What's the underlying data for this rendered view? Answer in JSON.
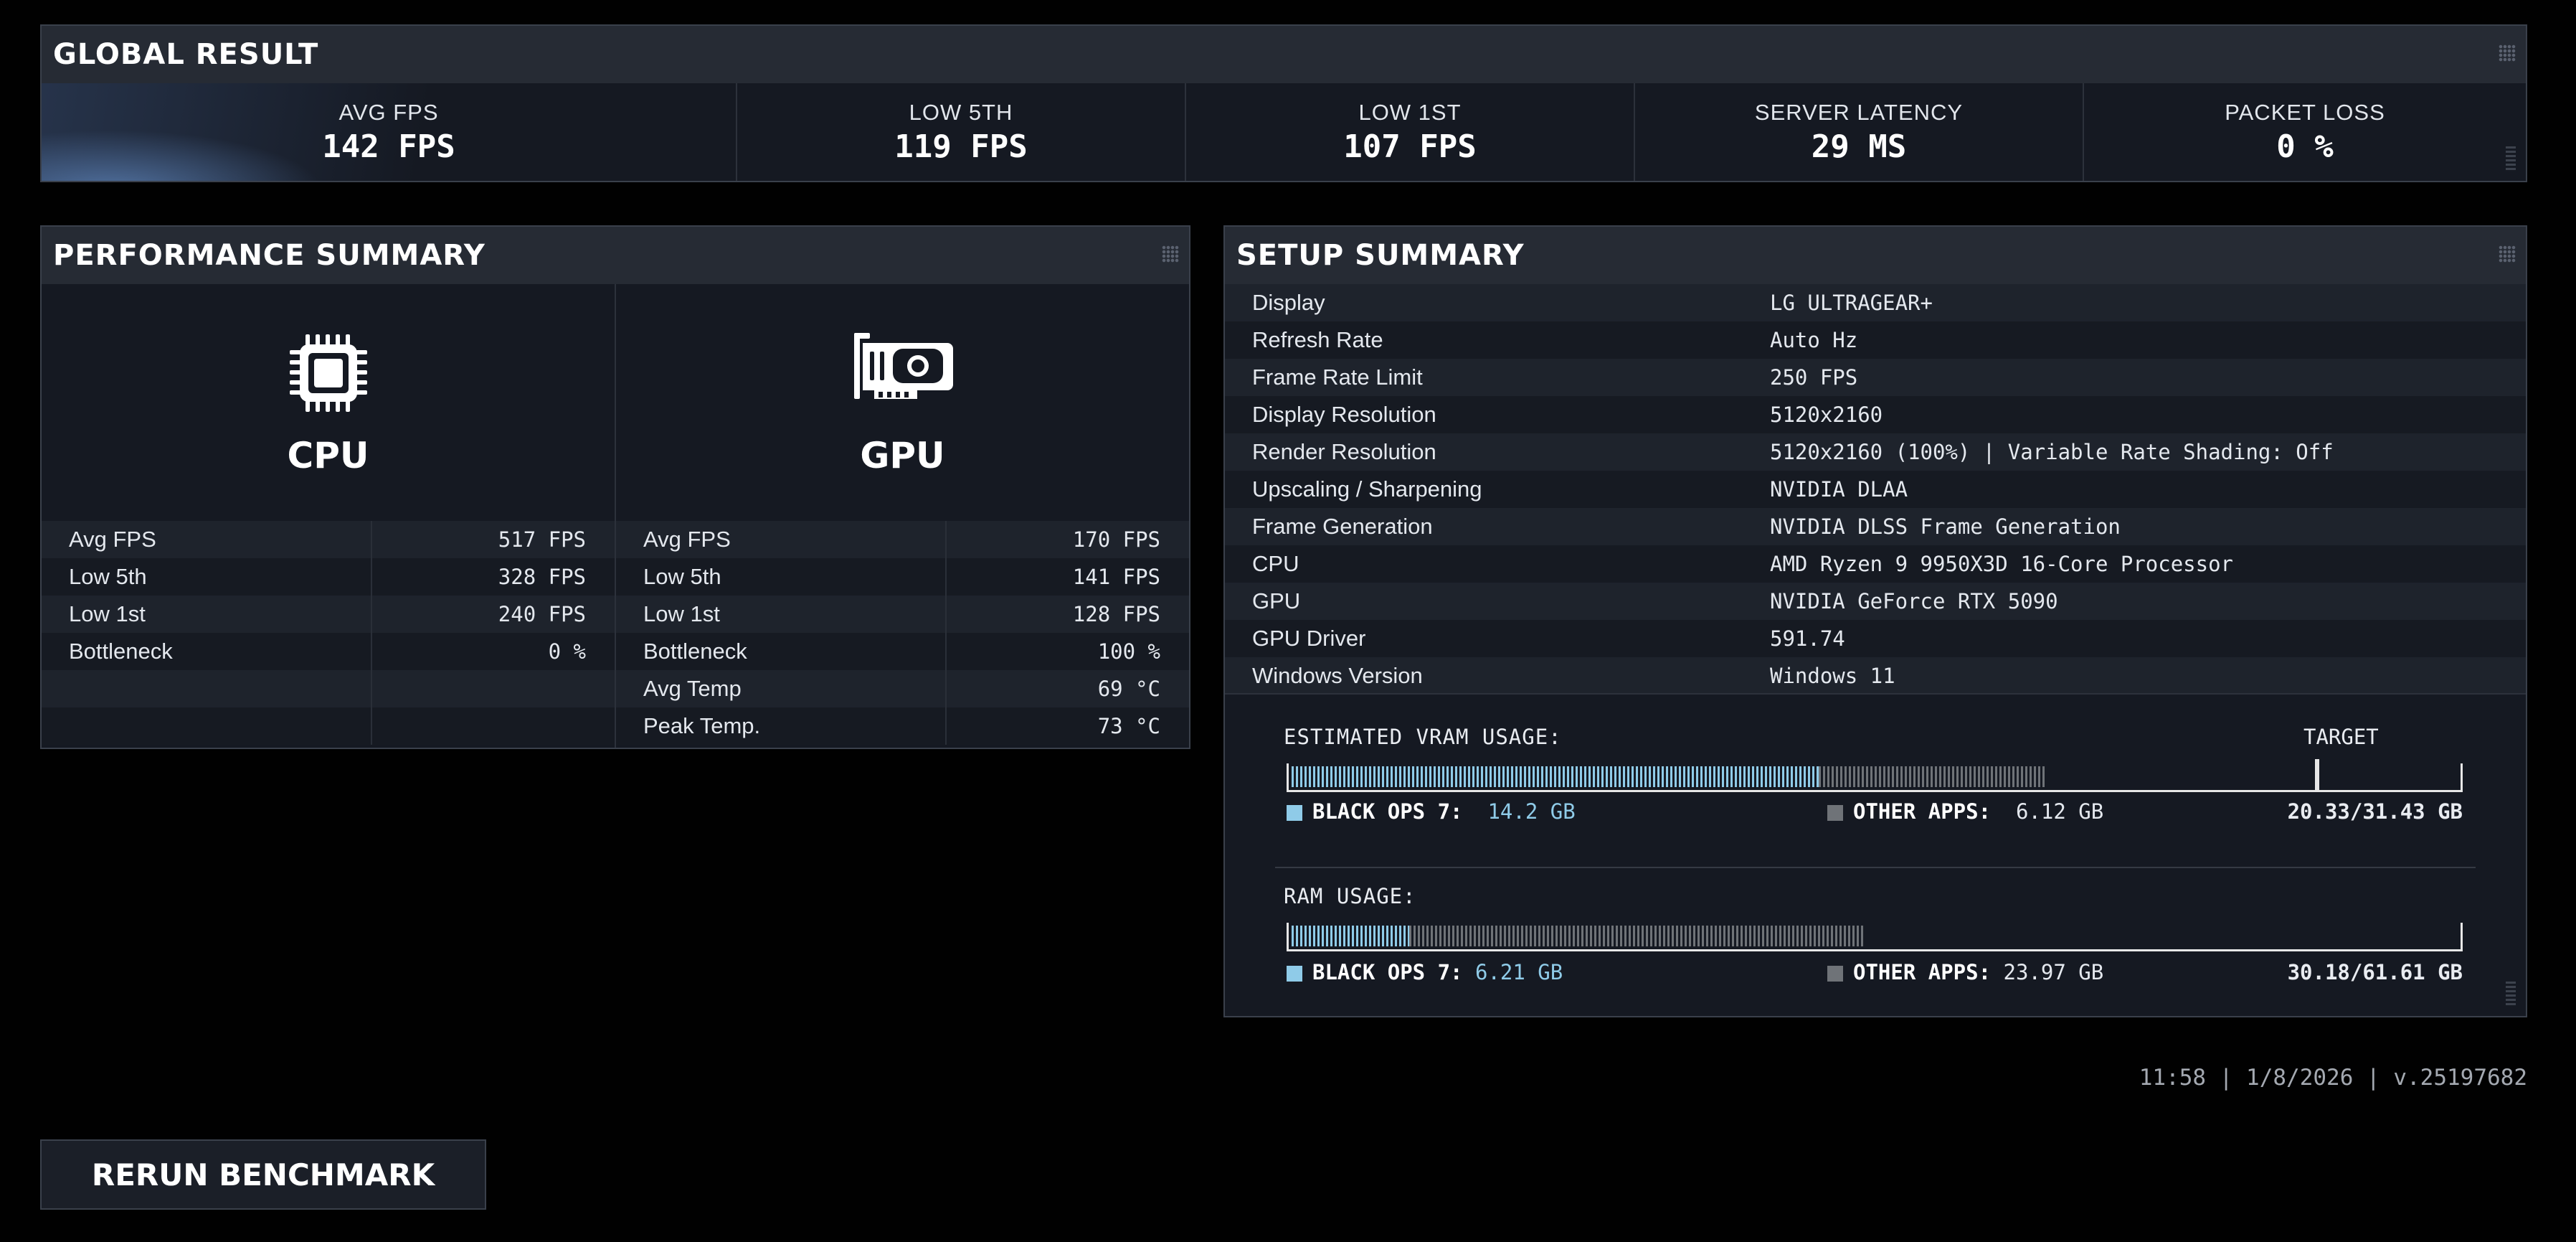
{
  "global_result": {
    "title": "GLOBAL RESULT",
    "metrics": [
      {
        "label": "AVG FPS",
        "value": "142 FPS"
      },
      {
        "label": "LOW 5TH",
        "value": "119 FPS"
      },
      {
        "label": "LOW 1ST",
        "value": "107 FPS"
      },
      {
        "label": "SERVER LATENCY",
        "value": "29 MS"
      },
      {
        "label": "PACKET LOSS",
        "value": "0 %"
      }
    ]
  },
  "performance_summary": {
    "title": "PERFORMANCE SUMMARY",
    "cpu": {
      "label": "CPU",
      "icon": "cpu-chip-icon",
      "stats": [
        {
          "name": "Avg FPS",
          "value": "517 FPS"
        },
        {
          "name": "Low 5th",
          "value": "328 FPS"
        },
        {
          "name": "Low 1st",
          "value": "240 FPS"
        },
        {
          "name": "Bottleneck",
          "value": "0 %"
        },
        {
          "name": "",
          "value": ""
        },
        {
          "name": "",
          "value": ""
        }
      ]
    },
    "gpu": {
      "label": "GPU",
      "icon": "graphics-card-icon",
      "stats": [
        {
          "name": "Avg FPS",
          "value": "170 FPS"
        },
        {
          "name": "Low 5th",
          "value": "141 FPS"
        },
        {
          "name": "Low 1st",
          "value": "128 FPS"
        },
        {
          "name": "Bottleneck",
          "value": "100 %"
        },
        {
          "name": "Avg Temp",
          "value": "69 °C"
        },
        {
          "name": "Peak Temp.",
          "value": "73 °C"
        }
      ]
    }
  },
  "setup_summary": {
    "title": "SETUP SUMMARY",
    "rows": [
      {
        "key": "Display",
        "value": "LG ULTRAGEAR+"
      },
      {
        "key": "Refresh Rate",
        "value": "Auto Hz"
      },
      {
        "key": "Frame Rate Limit",
        "value": "250 FPS"
      },
      {
        "key": "Display Resolution",
        "value": "5120x2160"
      },
      {
        "key": "Render Resolution",
        "value": "5120x2160 (100%) | Variable Rate Shading: Off"
      },
      {
        "key": "Upscaling / Sharpening",
        "value": "NVIDIA DLAA"
      },
      {
        "key": "Frame Generation",
        "value": "NVIDIA DLSS Frame Generation"
      },
      {
        "key": "CPU",
        "value": "AMD Ryzen 9 9950X3D 16-Core Processor"
      },
      {
        "key": "GPU",
        "value": "NVIDIA GeForce RTX 5090"
      },
      {
        "key": "GPU Driver",
        "value": "591.74"
      },
      {
        "key": "Windows Version",
        "value": "Windows 11"
      }
    ],
    "vram": {
      "title": "ESTIMATED VRAM USAGE:",
      "target_label": "TARGET",
      "game_label": "BLACK OPS 7:",
      "game_value": "14.2 GB",
      "other_label": "OTHER APPS:",
      "other_value": "6.12 GB",
      "total": "20.33/31.43 GB",
      "game_gb": 14.2,
      "other_gb": 6.12,
      "capacity_gb": 31.43,
      "target_fraction": 0.88
    },
    "ram": {
      "title": "RAM USAGE:",
      "game_label": "BLACK OPS 7:",
      "game_value": "6.21 GB",
      "other_label": "OTHER APPS:",
      "other_value": "23.97 GB",
      "total": "30.18/61.61 GB",
      "game_gb": 6.21,
      "other_gb": 23.97,
      "capacity_gb": 61.61
    },
    "colors": {
      "game": "#8fcbe8",
      "other": "#6f7378"
    }
  },
  "footer": {
    "info": "11:58 | 1/8/2026 | v.25197682",
    "rerun_label": "RERUN BENCHMARK"
  }
}
